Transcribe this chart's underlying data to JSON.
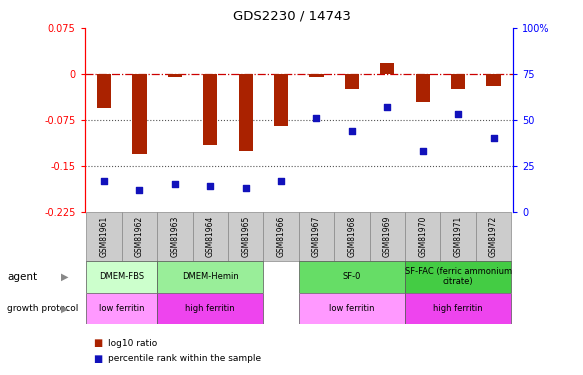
{
  "title": "GDS2230 / 14743",
  "samples": [
    "GSM81961",
    "GSM81962",
    "GSM81963",
    "GSM81964",
    "GSM81965",
    "GSM81966",
    "GSM81967",
    "GSM81968",
    "GSM81969",
    "GSM81970",
    "GSM81971",
    "GSM81972"
  ],
  "log10_ratio": [
    -0.055,
    -0.13,
    -0.005,
    -0.115,
    -0.125,
    -0.085,
    -0.005,
    -0.025,
    0.018,
    -0.045,
    -0.025,
    -0.02
  ],
  "percentile_rank": [
    17,
    12,
    15,
    14,
    13,
    17,
    51,
    44,
    57,
    33,
    53,
    40
  ],
  "ylim_left": [
    -0.225,
    0.075
  ],
  "ylim_right": [
    0,
    100
  ],
  "yticks_left": [
    0.075,
    0.0,
    -0.075,
    -0.15,
    -0.225
  ],
  "yticks_right": [
    100,
    75,
    50,
    25,
    0
  ],
  "hline_y": [
    -0.075,
    -0.15
  ],
  "agent_groups": [
    {
      "label": "DMEM-FBS",
      "start": 0,
      "end": 1,
      "color": "#ccffcc"
    },
    {
      "label": "DMEM-Hemin",
      "start": 2,
      "end": 4,
      "color": "#99ee99"
    },
    {
      "label": "SF-0",
      "start": 6,
      "end": 8,
      "color": "#66dd66"
    },
    {
      "label": "SF-FAC (ferric ammonium\ncitrate)",
      "start": 9,
      "end": 11,
      "color": "#44cc44"
    }
  ],
  "growth_groups": [
    {
      "label": "low ferritin",
      "start": 0,
      "end": 1,
      "color": "#ff99ff"
    },
    {
      "label": "high ferritin",
      "start": 2,
      "end": 4,
      "color": "#ee44ee"
    },
    {
      "label": "low ferritin",
      "start": 6,
      "end": 8,
      "color": "#ff99ff"
    },
    {
      "label": "high ferritin",
      "start": 9,
      "end": 11,
      "color": "#ee44ee"
    }
  ],
  "bar_color": "#aa2200",
  "dot_color": "#1111bb",
  "zero_line_color": "#cc0000",
  "dotted_line_color": "#555555",
  "bg_color": "#ffffff",
  "legend_red": "#aa2200",
  "legend_blue": "#1111bb",
  "sample_box_color": "#cccccc",
  "sample_box_edge": "#888888"
}
